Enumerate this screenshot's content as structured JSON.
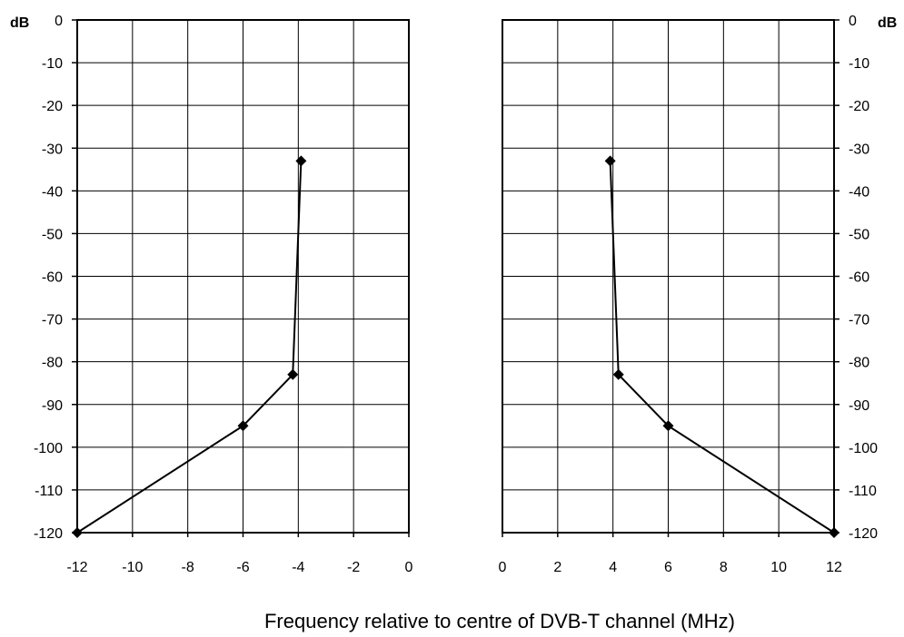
{
  "chart_data": [
    {
      "type": "line",
      "ylabel": "dB",
      "xlim": [
        -12,
        0
      ],
      "ylim": [
        -120,
        0
      ],
      "x_ticks": [
        -12,
        -10,
        -8,
        -6,
        -4,
        -2,
        0
      ],
      "y_ticks": [
        0,
        -10,
        -20,
        -30,
        -40,
        -50,
        -60,
        -70,
        -80,
        -90,
        -100,
        -110,
        -120
      ],
      "grid": true,
      "y_axis_side": "left",
      "marker": "diamond",
      "series": [
        {
          "x": [
            -12,
            -6,
            -4.2,
            -3.9
          ],
          "y": [
            -120,
            -95,
            -83,
            -33
          ]
        }
      ]
    },
    {
      "type": "line",
      "ylabel": "dB",
      "xlim": [
        0,
        12
      ],
      "ylim": [
        -120,
        0
      ],
      "x_ticks": [
        0,
        2,
        4,
        6,
        8,
        10,
        12
      ],
      "y_ticks": [
        0,
        -10,
        -20,
        -30,
        -40,
        -50,
        -60,
        -70,
        -80,
        -90,
        -100,
        -110,
        -120
      ],
      "grid": true,
      "y_axis_side": "right",
      "marker": "diamond",
      "series": [
        {
          "x": [
            3.9,
            4.2,
            6,
            12
          ],
          "y": [
            -33,
            -83,
            -95,
            -120
          ]
        }
      ]
    }
  ],
  "xlabel": "Frequency relative to centre of DVB-T channel (MHz)",
  "colors": {
    "line": "#000000",
    "grid": "#000000",
    "background": "#ffffff"
  }
}
